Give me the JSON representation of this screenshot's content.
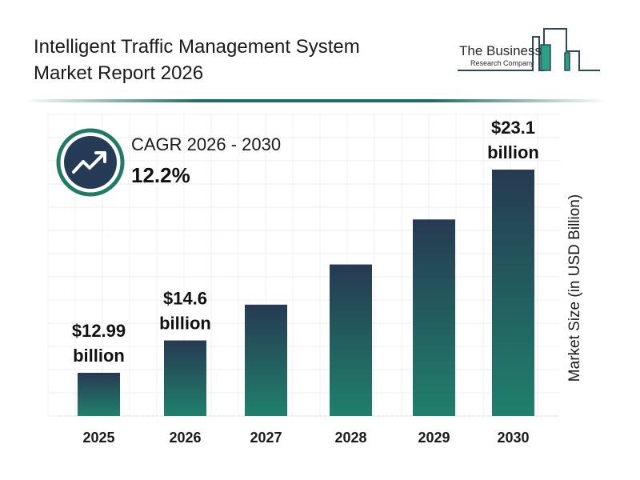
{
  "header": {
    "title_line1": "Intelligent Traffic Management System",
    "title_line2": "Market Report 2026"
  },
  "logo": {
    "line1": "The Business",
    "line2": "Research Company"
  },
  "cagr": {
    "label": "CAGR 2026 - 2030",
    "value": "12.2%",
    "icon": "trending-up-icon"
  },
  "colors": {
    "bar_top": "#263a52",
    "bar_bottom": "#20806c",
    "accent": "#1f7a66",
    "icon_bg": "#243a55"
  },
  "chart_data": {
    "type": "bar",
    "categories": [
      "2025",
      "2026",
      "2027",
      "2028",
      "2029",
      "2030"
    ],
    "values": [
      12.99,
      14.6,
      16.38,
      18.38,
      20.62,
      23.1
    ],
    "data_labels": [
      {
        "index": 0,
        "amount": "$12.99",
        "unit": "billion"
      },
      {
        "index": 1,
        "amount": "$14.6",
        "unit": "billion"
      },
      {
        "index": 5,
        "amount": "$23.1",
        "unit": "billion"
      }
    ],
    "title": "",
    "xlabel": "",
    "ylabel": "Market Size (in USD Billion)",
    "grid": true,
    "yaxis_visible": false
  }
}
